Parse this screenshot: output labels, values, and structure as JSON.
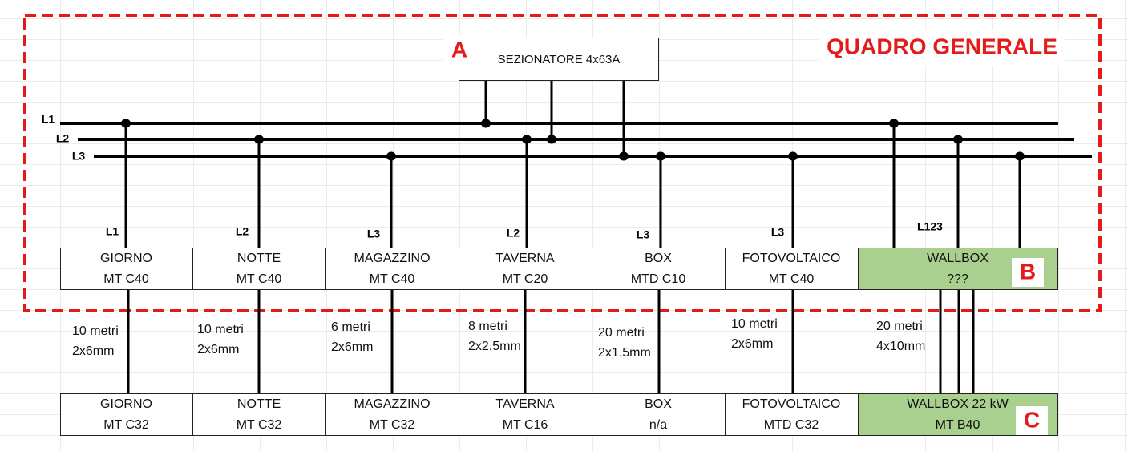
{
  "title": "QUADRO GENERALE",
  "switch": {
    "marker": "A",
    "label": "SEZIONATORE 4x63A"
  },
  "buses": [
    "L1",
    "L2",
    "L3"
  ],
  "panel_marker": "B",
  "sub_marker": "C",
  "circuits": [
    {
      "phase": "L1",
      "breaker": [
        "GIORNO",
        "MT C40"
      ],
      "cable": [
        "10 metri",
        "2x6mm"
      ],
      "sub": [
        "GIORNO",
        "MT C32"
      ]
    },
    {
      "phase": "L2",
      "breaker": [
        "NOTTE",
        "MT C40"
      ],
      "cable": [
        "10 metri",
        "2x6mm"
      ],
      "sub": [
        "NOTTE",
        "MT C32"
      ]
    },
    {
      "phase": "L3",
      "breaker": [
        "MAGAZZINO",
        "MT C40"
      ],
      "cable": [
        "6 metri",
        "2x6mm"
      ],
      "sub": [
        "MAGAZZINO",
        "MT C32"
      ]
    },
    {
      "phase": "L2",
      "breaker": [
        "TAVERNA",
        "MT C20"
      ],
      "cable": [
        "8 metri",
        "2x2.5mm"
      ],
      "sub": [
        "TAVERNA",
        "MT C16"
      ]
    },
    {
      "phase": "L3",
      "breaker": [
        "BOX",
        "MTD C10"
      ],
      "cable": [
        "20 metri",
        "2x1.5mm"
      ],
      "sub": [
        "BOX",
        "n/a"
      ]
    },
    {
      "phase": "L3",
      "breaker": [
        "FOTOVOLTAICO",
        "MT C40"
      ],
      "cable": [
        "10 metri",
        "2x6mm"
      ],
      "sub": [
        "FOTOVOLTAICO",
        "MTD C32"
      ]
    },
    {
      "phase": "L123",
      "breaker": [
        "WALLBOX",
        "???"
      ],
      "cable": [
        "20 metri",
        "4x10mm"
      ],
      "sub": [
        "WALLBOX 22 kW",
        "MT B40"
      ]
    }
  ]
}
